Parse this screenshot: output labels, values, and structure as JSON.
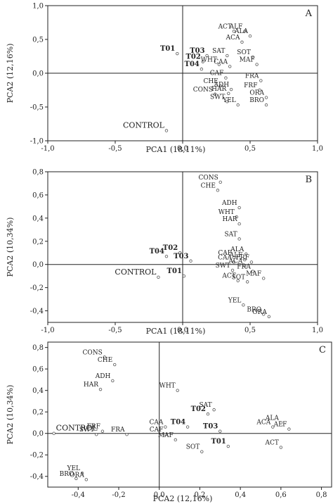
{
  "chart_data": [
    {
      "type": "scatter",
      "panel": "A",
      "xlabel": "PCA1 (18,11%)",
      "ylabel": "PCA2 (12,16%)",
      "xlim": [
        -1.0,
        1.0
      ],
      "ylim": [
        -1.0,
        1.0
      ],
      "xticks": [
        -1.0,
        -0.5,
        0.0,
        0.5,
        1.0
      ],
      "yticks": [
        -1.0,
        -0.5,
        0.0,
        0.5,
        1.0
      ],
      "xtick_labels": [
        "-1,0",
        "-0,5",
        "0,0",
        "0,5",
        "1,0"
      ],
      "ytick_labels": [
        "-1,0",
        "-0,5",
        "0,0",
        "0,5",
        "1,0"
      ],
      "points": [
        {
          "label": "ACT",
          "x": 0.38,
          "y": 0.62
        },
        {
          "label": "ALF",
          "x": 0.46,
          "y": 0.62
        },
        {
          "label": "ALA",
          "x": 0.5,
          "y": 0.55
        },
        {
          "label": "ACA",
          "x": 0.44,
          "y": 0.46
        },
        {
          "label": "T01",
          "x": -0.04,
          "y": 0.29,
          "style": "bold"
        },
        {
          "label": "T03",
          "x": 0.18,
          "y": 0.26,
          "style": "bold"
        },
        {
          "label": "SAT",
          "x": 0.33,
          "y": 0.26
        },
        {
          "label": "SOT",
          "x": 0.52,
          "y": 0.24
        },
        {
          "label": "T02",
          "x": 0.15,
          "y": 0.17,
          "style": "bold"
        },
        {
          "label": "WHT",
          "x": 0.27,
          "y": 0.13
        },
        {
          "label": "CAA",
          "x": 0.35,
          "y": 0.1
        },
        {
          "label": "MAF",
          "x": 0.55,
          "y": 0.13
        },
        {
          "label": "T04",
          "x": 0.14,
          "y": 0.06,
          "style": "bold"
        },
        {
          "label": "CAF",
          "x": 0.32,
          "y": -0.07
        },
        {
          "label": "FRA",
          "x": 0.58,
          "y": -0.11
        },
        {
          "label": "CHE",
          "x": 0.28,
          "y": -0.19
        },
        {
          "label": "ADH",
          "x": 0.36,
          "y": -0.24
        },
        {
          "label": "FRF",
          "x": 0.57,
          "y": -0.25
        },
        {
          "label": "HAR",
          "x": 0.34,
          "y": -0.3
        },
        {
          "label": "CONS",
          "x": 0.24,
          "y": -0.31
        },
        {
          "label": "ORA",
          "x": 0.62,
          "y": -0.36
        },
        {
          "label": "SWT",
          "x": 0.33,
          "y": -0.42
        },
        {
          "label": "BRO",
          "x": 0.62,
          "y": -0.47
        },
        {
          "label": "YEL",
          "x": 0.41,
          "y": -0.47
        },
        {
          "label": "CONTROL",
          "x": -0.12,
          "y": -0.85,
          "style": "big"
        }
      ]
    },
    {
      "type": "scatter",
      "panel": "B",
      "xlabel": "PCA1 (18,11%)",
      "ylabel": "PCA2 (10,34%)",
      "xlim": [
        -1.0,
        1.0
      ],
      "ylim": [
        -0.5,
        0.8
      ],
      "xticks": [
        -1.0,
        -0.5,
        0.0,
        0.5,
        1.0
      ],
      "yticks": [
        -0.4,
        -0.2,
        0.0,
        0.2,
        0.4,
        0.6,
        0.8
      ],
      "xtick_labels": [
        "-1,0",
        "-0,5",
        "0,0",
        "0,5",
        "1,0"
      ],
      "ytick_labels": [
        "-0,4",
        "-0,2",
        "0,0",
        "0,2",
        "0,4",
        "0,6",
        "0,8"
      ],
      "points": [
        {
          "label": "CONS",
          "x": 0.28,
          "y": 0.71
        },
        {
          "label": "CHE",
          "x": 0.26,
          "y": 0.64
        },
        {
          "label": "ADH",
          "x": 0.42,
          "y": 0.49
        },
        {
          "label": "WHT",
          "x": 0.4,
          "y": 0.41
        },
        {
          "label": "HAR",
          "x": 0.42,
          "y": 0.35
        },
        {
          "label": "SAT",
          "x": 0.42,
          "y": 0.22
        },
        {
          "label": "ALA",
          "x": 0.47,
          "y": 0.09
        },
        {
          "label": "T02",
          "x": -0.02,
          "y": 0.1,
          "style": "bold"
        },
        {
          "label": "T04",
          "x": -0.12,
          "y": 0.07,
          "style": "bold"
        },
        {
          "label": "CAF",
          "x": 0.38,
          "y": 0.06
        },
        {
          "label": "CAA",
          "x": 0.38,
          "y": 0.02
        },
        {
          "label": "T03",
          "x": 0.06,
          "y": 0.03,
          "style": "bold"
        },
        {
          "label": "ALF",
          "x": 0.46,
          "y": 0.04
        },
        {
          "label": "FRF",
          "x": 0.51,
          "y": 0.02
        },
        {
          "label": "ACA",
          "x": 0.46,
          "y": -0.01
        },
        {
          "label": "SWT",
          "x": 0.37,
          "y": -0.05
        },
        {
          "label": "FRA",
          "x": 0.52,
          "y": -0.06
        },
        {
          "label": "T01",
          "x": 0.01,
          "y": -0.1,
          "style": "bold"
        },
        {
          "label": "CONTROL",
          "x": -0.18,
          "y": -0.11,
          "style": "big"
        },
        {
          "label": "MAF",
          "x": 0.6,
          "y": -0.12
        },
        {
          "label": "ACT",
          "x": 0.41,
          "y": -0.14
        },
        {
          "label": "SOT",
          "x": 0.48,
          "y": -0.15
        },
        {
          "label": "YEL",
          "x": 0.45,
          "y": -0.35
        },
        {
          "label": "BRO",
          "x": 0.6,
          "y": -0.43
        },
        {
          "label": "ORA",
          "x": 0.64,
          "y": -0.45
        }
      ]
    },
    {
      "type": "scatter",
      "panel": "C",
      "xlabel": "PCA2 (12,16%)",
      "ylabel": "PCA2 (10,34%)",
      "xlim": [
        -0.55,
        0.85
      ],
      "ylim": [
        -0.5,
        0.85
      ],
      "xticks": [
        -0.4,
        -0.2,
        0.0,
        0.2,
        0.4,
        0.6,
        0.8
      ],
      "yticks": [
        -0.4,
        -0.2,
        0.0,
        0.2,
        0.4,
        0.6,
        0.8
      ],
      "xtick_labels": [
        "-0,4",
        "-0,2",
        "0,0",
        "0,2",
        "0,4",
        "0,6",
        "0,8"
      ],
      "ytick_labels": [
        "-0,4",
        "-0,2",
        "0,0",
        "0,2",
        "0,4",
        "0,6",
        "0,8"
      ],
      "points": [
        {
          "label": "CONS",
          "x": -0.27,
          "y": 0.71
        },
        {
          "label": "CHE",
          "x": -0.22,
          "y": 0.64
        },
        {
          "label": "ADH",
          "x": -0.23,
          "y": 0.49
        },
        {
          "label": "HAR",
          "x": -0.29,
          "y": 0.41
        },
        {
          "label": "WHT",
          "x": 0.09,
          "y": 0.4
        },
        {
          "label": "SAT",
          "x": 0.27,
          "y": 0.22
        },
        {
          "label": "T02",
          "x": 0.24,
          "y": 0.18,
          "style": "bold"
        },
        {
          "label": "ALA",
          "x": 0.6,
          "y": 0.1
        },
        {
          "label": "T04",
          "x": 0.14,
          "y": 0.06,
          "style": "bold"
        },
        {
          "label": "ACA",
          "x": 0.56,
          "y": 0.06
        },
        {
          "label": "ALF",
          "x": 0.64,
          "y": 0.04
        },
        {
          "label": "CAA",
          "x": 0.03,
          "y": 0.06
        },
        {
          "label": "T03",
          "x": 0.3,
          "y": 0.02,
          "style": "bold"
        },
        {
          "label": "FRF",
          "x": -0.28,
          "y": 0.02
        },
        {
          "label": "FRA",
          "x": -0.16,
          "y": -0.01
        },
        {
          "label": "CAF",
          "x": 0.03,
          "y": -0.01
        },
        {
          "label": "CONTROL",
          "x": -0.52,
          "y": 0.0,
          "style": "big"
        },
        {
          "label": "SWT",
          "x": -0.31,
          "y": -0.01
        },
        {
          "label": "MAF",
          "x": 0.08,
          "y": -0.06
        },
        {
          "label": "T01",
          "x": 0.34,
          "y": -0.12,
          "style": "bold"
        },
        {
          "label": "ACT",
          "x": 0.6,
          "y": -0.13
        },
        {
          "label": "SOT",
          "x": 0.21,
          "y": -0.17
        },
        {
          "label": "YEL",
          "x": -0.38,
          "y": -0.37
        },
        {
          "label": "BRO",
          "x": -0.41,
          "y": -0.42
        },
        {
          "label": "ORA",
          "x": -0.36,
          "y": -0.43
        }
      ]
    }
  ]
}
